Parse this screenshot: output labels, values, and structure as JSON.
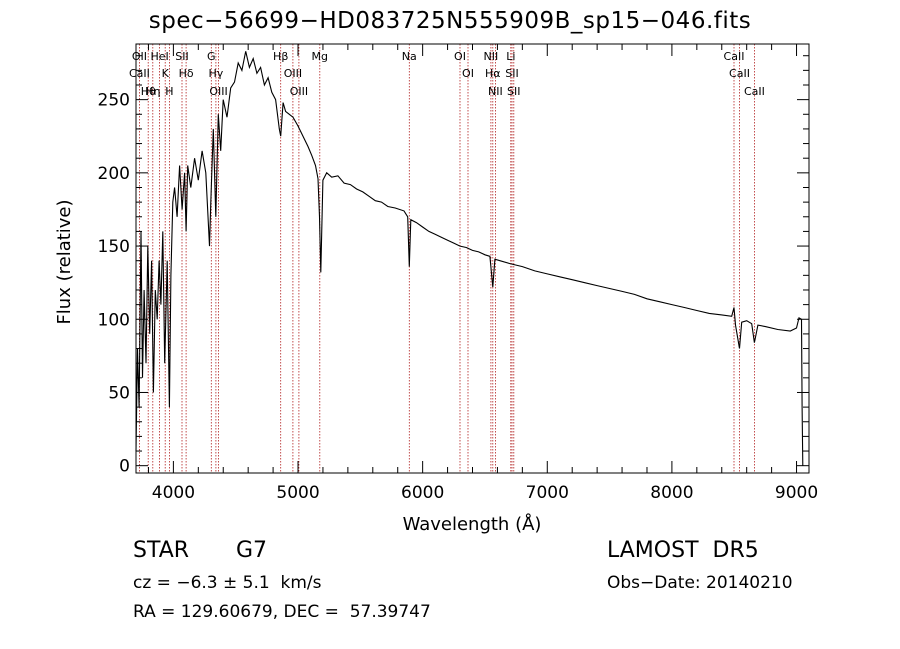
{
  "header": {
    "title": "spec−56699−HD083725N555909B_sp15−046.fits"
  },
  "info": {
    "object_type": "STAR",
    "object_class": "G7",
    "survey": "LAMOST  DR5",
    "cz": "cz = −6.3 ± 5.1  km/s",
    "obs_date": "Obs−Date: 20140210",
    "ra_dec": "RA = 129.60679, DEC =  57.39747"
  },
  "chart_data": {
    "type": "line",
    "xlabel": "Wavelength (Å)",
    "ylabel": "Flux (relative)",
    "xlim": [
      3700,
      9100
    ],
    "ylim": [
      -5,
      288
    ],
    "xticks": [
      4000,
      5000,
      6000,
      7000,
      8000,
      9000
    ],
    "yticks": [
      0,
      50,
      100,
      150,
      200,
      250
    ],
    "line_color": "#000000",
    "marker_color": "#b22222",
    "series": [
      {
        "points": [
          [
            3700,
            10
          ],
          [
            3712,
            80
          ],
          [
            3725,
            40
          ],
          [
            3740,
            160
          ],
          [
            3752,
            60
          ],
          [
            3765,
            120
          ],
          [
            3780,
            70
          ],
          [
            3795,
            150
          ],
          [
            3810,
            90
          ],
          [
            3825,
            140
          ],
          [
            3840,
            50
          ],
          [
            3855,
            120
          ],
          [
            3870,
            100
          ],
          [
            3885,
            140
          ],
          [
            3900,
            110
          ],
          [
            3915,
            160
          ],
          [
            3930,
            70
          ],
          [
            3950,
            140
          ],
          [
            3968,
            40
          ],
          [
            3980,
            130
          ],
          [
            3995,
            180
          ],
          [
            4010,
            190
          ],
          [
            4030,
            170
          ],
          [
            4050,
            205
          ],
          [
            4070,
            175
          ],
          [
            4090,
            200
          ],
          [
            4102,
            160
          ],
          [
            4115,
            205
          ],
          [
            4140,
            190
          ],
          [
            4170,
            210
          ],
          [
            4200,
            195
          ],
          [
            4230,
            215
          ],
          [
            4260,
            200
          ],
          [
            4290,
            150
          ],
          [
            4300,
            180
          ],
          [
            4320,
            230
          ],
          [
            4340,
            170
          ],
          [
            4360,
            240
          ],
          [
            4380,
            215
          ],
          [
            4400,
            250
          ],
          [
            4430,
            238
          ],
          [
            4460,
            258
          ],
          [
            4490,
            262
          ],
          [
            4520,
            275
          ],
          [
            4550,
            270
          ],
          [
            4580,
            283
          ],
          [
            4610,
            272
          ],
          [
            4640,
            278
          ],
          [
            4670,
            268
          ],
          [
            4700,
            272
          ],
          [
            4730,
            260
          ],
          [
            4760,
            265
          ],
          [
            4790,
            255
          ],
          [
            4820,
            250
          ],
          [
            4850,
            230
          ],
          [
            4861,
            225
          ],
          [
            4880,
            248
          ],
          [
            4900,
            242
          ],
          [
            4930,
            240
          ],
          [
            4960,
            238
          ],
          [
            5000,
            232
          ],
          [
            5040,
            225
          ],
          [
            5080,
            218
          ],
          [
            5110,
            212
          ],
          [
            5140,
            205
          ],
          [
            5160,
            196
          ],
          [
            5172,
            170
          ],
          [
            5183,
            132
          ],
          [
            5200,
            195
          ],
          [
            5230,
            200
          ],
          [
            5270,
            197
          ],
          [
            5320,
            198
          ],
          [
            5370,
            193
          ],
          [
            5420,
            192
          ],
          [
            5470,
            189
          ],
          [
            5520,
            187
          ],
          [
            5570,
            184
          ],
          [
            5620,
            181
          ],
          [
            5670,
            180
          ],
          [
            5720,
            177
          ],
          [
            5780,
            176
          ],
          [
            5850,
            174
          ],
          [
            5880,
            170
          ],
          [
            5893,
            136
          ],
          [
            5905,
            168
          ],
          [
            5950,
            166
          ],
          [
            6000,
            163
          ],
          [
            6050,
            160
          ],
          [
            6100,
            158
          ],
          [
            6150,
            156
          ],
          [
            6200,
            154
          ],
          [
            6250,
            152
          ],
          [
            6300,
            150
          ],
          [
            6350,
            149
          ],
          [
            6400,
            147
          ],
          [
            6450,
            146
          ],
          [
            6500,
            144
          ],
          [
            6540,
            143
          ],
          [
            6563,
            122
          ],
          [
            6580,
            141
          ],
          [
            6620,
            140
          ],
          [
            6700,
            138
          ],
          [
            6800,
            136
          ],
          [
            6900,
            133
          ],
          [
            7000,
            131
          ],
          [
            7100,
            129
          ],
          [
            7200,
            127
          ],
          [
            7300,
            125
          ],
          [
            7400,
            123
          ],
          [
            7500,
            121
          ],
          [
            7600,
            119
          ],
          [
            7700,
            117
          ],
          [
            7800,
            114
          ],
          [
            7900,
            112
          ],
          [
            8000,
            110
          ],
          [
            8100,
            108
          ],
          [
            8200,
            106
          ],
          [
            8300,
            104
          ],
          [
            8400,
            103
          ],
          [
            8480,
            102
          ],
          [
            8498,
            108
          ],
          [
            8510,
            96
          ],
          [
            8542,
            80
          ],
          [
            8560,
            98
          ],
          [
            8600,
            99
          ],
          [
            8640,
            97
          ],
          [
            8662,
            84
          ],
          [
            8690,
            96
          ],
          [
            8750,
            95
          ],
          [
            8850,
            93
          ],
          [
            8950,
            92
          ],
          [
            9000,
            94
          ],
          [
            9020,
            101
          ],
          [
            9040,
            100
          ],
          [
            9045,
            40
          ],
          [
            9050,
            0
          ]
        ]
      }
    ],
    "markers": [
      {
        "wl": 3727,
        "labels": [
          "OII",
          "CaII"
        ]
      },
      {
        "wl": 3798,
        "labels": [
          "Hθ"
        ]
      },
      {
        "wl": 3835,
        "labels": [
          "Hη"
        ]
      },
      {
        "wl": 3889,
        "labels": [
          "HeI"
        ]
      },
      {
        "wl": 3934,
        "labels": [
          "K"
        ]
      },
      {
        "wl": 3968,
        "labels": [
          "H"
        ]
      },
      {
        "wl": 4069,
        "labels": [
          "SII"
        ]
      },
      {
        "wl": 4102,
        "labels": [
          "Hδ"
        ]
      },
      {
        "wl": 4304,
        "labels": [
          "G"
        ]
      },
      {
        "wl": 4341,
        "labels": [
          "Hγ"
        ]
      },
      {
        "wl": 4363,
        "labels": [
          "OIII"
        ]
      },
      {
        "wl": 4861,
        "labels": [
          "Hβ"
        ]
      },
      {
        "wl": 4959,
        "labels": [
          "OIII"
        ]
      },
      {
        "wl": 5007,
        "labels": [
          "OIII"
        ]
      },
      {
        "wl": 5175,
        "labels": [
          "Mg"
        ]
      },
      {
        "wl": 5893,
        "labels": [
          "Na"
        ]
      },
      {
        "wl": 6300,
        "labels": [
          "OI"
        ]
      },
      {
        "wl": 6364,
        "labels": [
          "OI"
        ]
      },
      {
        "wl": 6548,
        "labels": [
          "NII"
        ]
      },
      {
        "wl": 6563,
        "labels": [
          "Hα"
        ]
      },
      {
        "wl": 6584,
        "labels": [
          "NII"
        ]
      },
      {
        "wl": 6707,
        "labels": [
          "Li"
        ]
      },
      {
        "wl": 6717,
        "labels": [
          "SII"
        ]
      },
      {
        "wl": 6731,
        "labels": [
          "SII"
        ]
      },
      {
        "wl": 8498,
        "labels": [
          "CaII"
        ]
      },
      {
        "wl": 8542,
        "labels": [
          "CaII"
        ]
      },
      {
        "wl": 8662,
        "labels": [
          "CaII"
        ]
      }
    ]
  }
}
